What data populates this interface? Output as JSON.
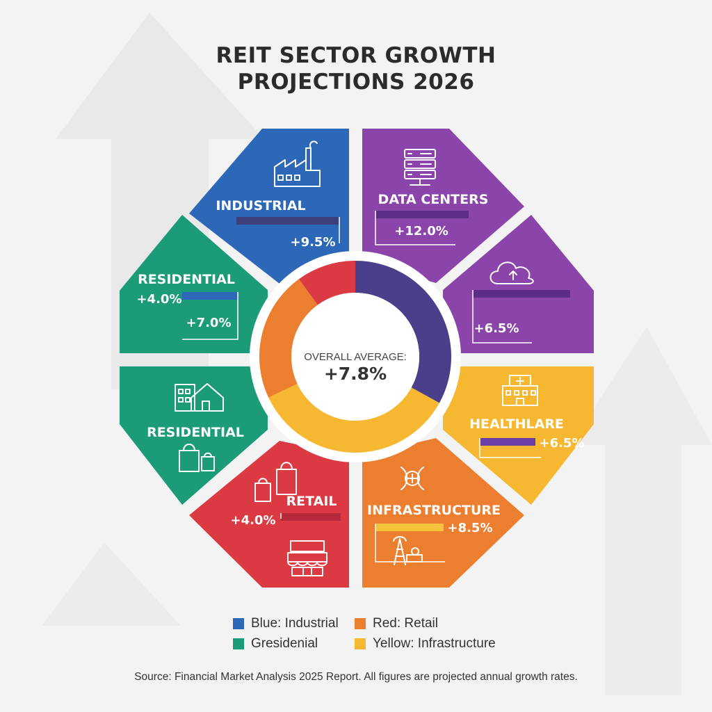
{
  "title_lines": [
    "REIT SECTOR GROWTH",
    "PROJECTIONS 2026"
  ],
  "colors": {
    "blue": "#2d67b8",
    "purple": "#8b44a9",
    "green": "#1b9b78",
    "red": "#dc3a43",
    "orange": "#ec7f2f",
    "yellow": "#f6b830",
    "ring_navy": "#4a3f8a"
  },
  "chart_data": {
    "type": "pie",
    "center_label": "OVERALL AVERAGE:",
    "center_value": "+7.8%",
    "ring_slices": [
      {
        "color": "ring_navy",
        "share": 0.33
      },
      {
        "color": "yellow",
        "share": 0.35
      },
      {
        "color": "orange",
        "share": 0.22
      },
      {
        "color": "red",
        "share": 0.1
      }
    ],
    "segments": [
      {
        "label": "INDUSTRIAL",
        "values": [
          "+9.5%"
        ],
        "color": "blue",
        "icon": "factory-icon"
      },
      {
        "label": "DATA CENTERS",
        "values": [
          "+12.0%"
        ],
        "color": "purple",
        "icon": "server-icon"
      },
      {
        "label": "",
        "values": [
          "+6.5%"
        ],
        "color": "purple",
        "icon": "cloud-upload-icon"
      },
      {
        "label": "HEALTHLARE",
        "values": [
          "+6.5%"
        ],
        "color": "yellow",
        "icon": "hospital-icon"
      },
      {
        "label": "INFRASTRUCTURE",
        "values": [
          "+8.5%"
        ],
        "color": "orange",
        "icon": "tower-pipeline-icon"
      },
      {
        "label": "RETAIL",
        "values": [
          "+4.0%"
        ],
        "color": "red",
        "icon": "storefront-icon"
      },
      {
        "label": "RESIDENTIAL",
        "values": [],
        "color": "green",
        "icon": "house-apartment-icon"
      },
      {
        "label": "RESIDENTIAL",
        "values": [
          "+4.0%",
          "+7.0%"
        ],
        "color": "green",
        "icon": ""
      }
    ]
  },
  "legend": [
    {
      "label": "Blue: Industrial",
      "color": "blue"
    },
    {
      "label": "Red: Retail",
      "color": "orange"
    },
    {
      "label": "Gresidenial",
      "color": "green"
    },
    {
      "label": "Yellow: Infrastructure",
      "color": "yellow"
    }
  ],
  "source": "Source: Financial Market Analysis 2025 Report. All figures are projected annual growth rates."
}
